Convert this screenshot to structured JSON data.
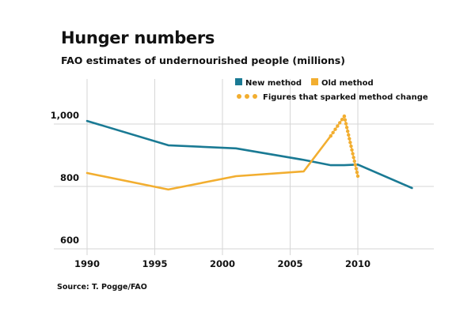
{
  "chart_data": {
    "type": "line",
    "title": "Hunger numbers",
    "subtitle": "FAO estimates of undernourished people (millions)",
    "xlabel": "",
    "ylabel": "",
    "xlim": [
      1990,
      2014
    ],
    "ylim": [
      590,
      1040
    ],
    "x_ticks": [
      1990,
      1995,
      2000,
      2005,
      2010
    ],
    "x_tick_labels": [
      "1990",
      "1995",
      "2000",
      "2005",
      "2010"
    ],
    "y_ticks": [
      600,
      800,
      1000
    ],
    "y_tick_labels": [
      "600",
      "800",
      "1,000"
    ],
    "grid": true,
    "legend_position": "top-right",
    "series": [
      {
        "name": "New method",
        "color": "#1a7a94",
        "style": "solid",
        "points": [
          [
            1990,
            1010
          ],
          [
            1996,
            932
          ],
          [
            2001,
            922
          ],
          [
            2006,
            885
          ],
          [
            2008,
            868
          ],
          [
            2009,
            868
          ],
          [
            2010,
            870
          ],
          [
            2014,
            795
          ]
        ]
      },
      {
        "name": "Old method",
        "color": "#f2ae30",
        "style": "solid",
        "points": [
          [
            1990,
            843
          ],
          [
            1996,
            790
          ],
          [
            2001,
            833
          ],
          [
            2006,
            848
          ],
          [
            2008,
            962
          ]
        ]
      },
      {
        "name": "Figures that sparked method change",
        "color": "#f2ae30",
        "style": "dotted",
        "points": [
          [
            2008,
            962
          ],
          [
            2009,
            1025
          ],
          [
            2010,
            833
          ]
        ]
      }
    ],
    "legend": [
      {
        "label": "New method",
        "color": "#1a7a94",
        "marker": "square"
      },
      {
        "label": "Old method",
        "color": "#f2ae30",
        "marker": "square"
      },
      {
        "label": "Figures that sparked method change",
        "color": "#f2ae30",
        "marker": "dots"
      }
    ],
    "source": "Source: T. Pogge/FAO"
  }
}
